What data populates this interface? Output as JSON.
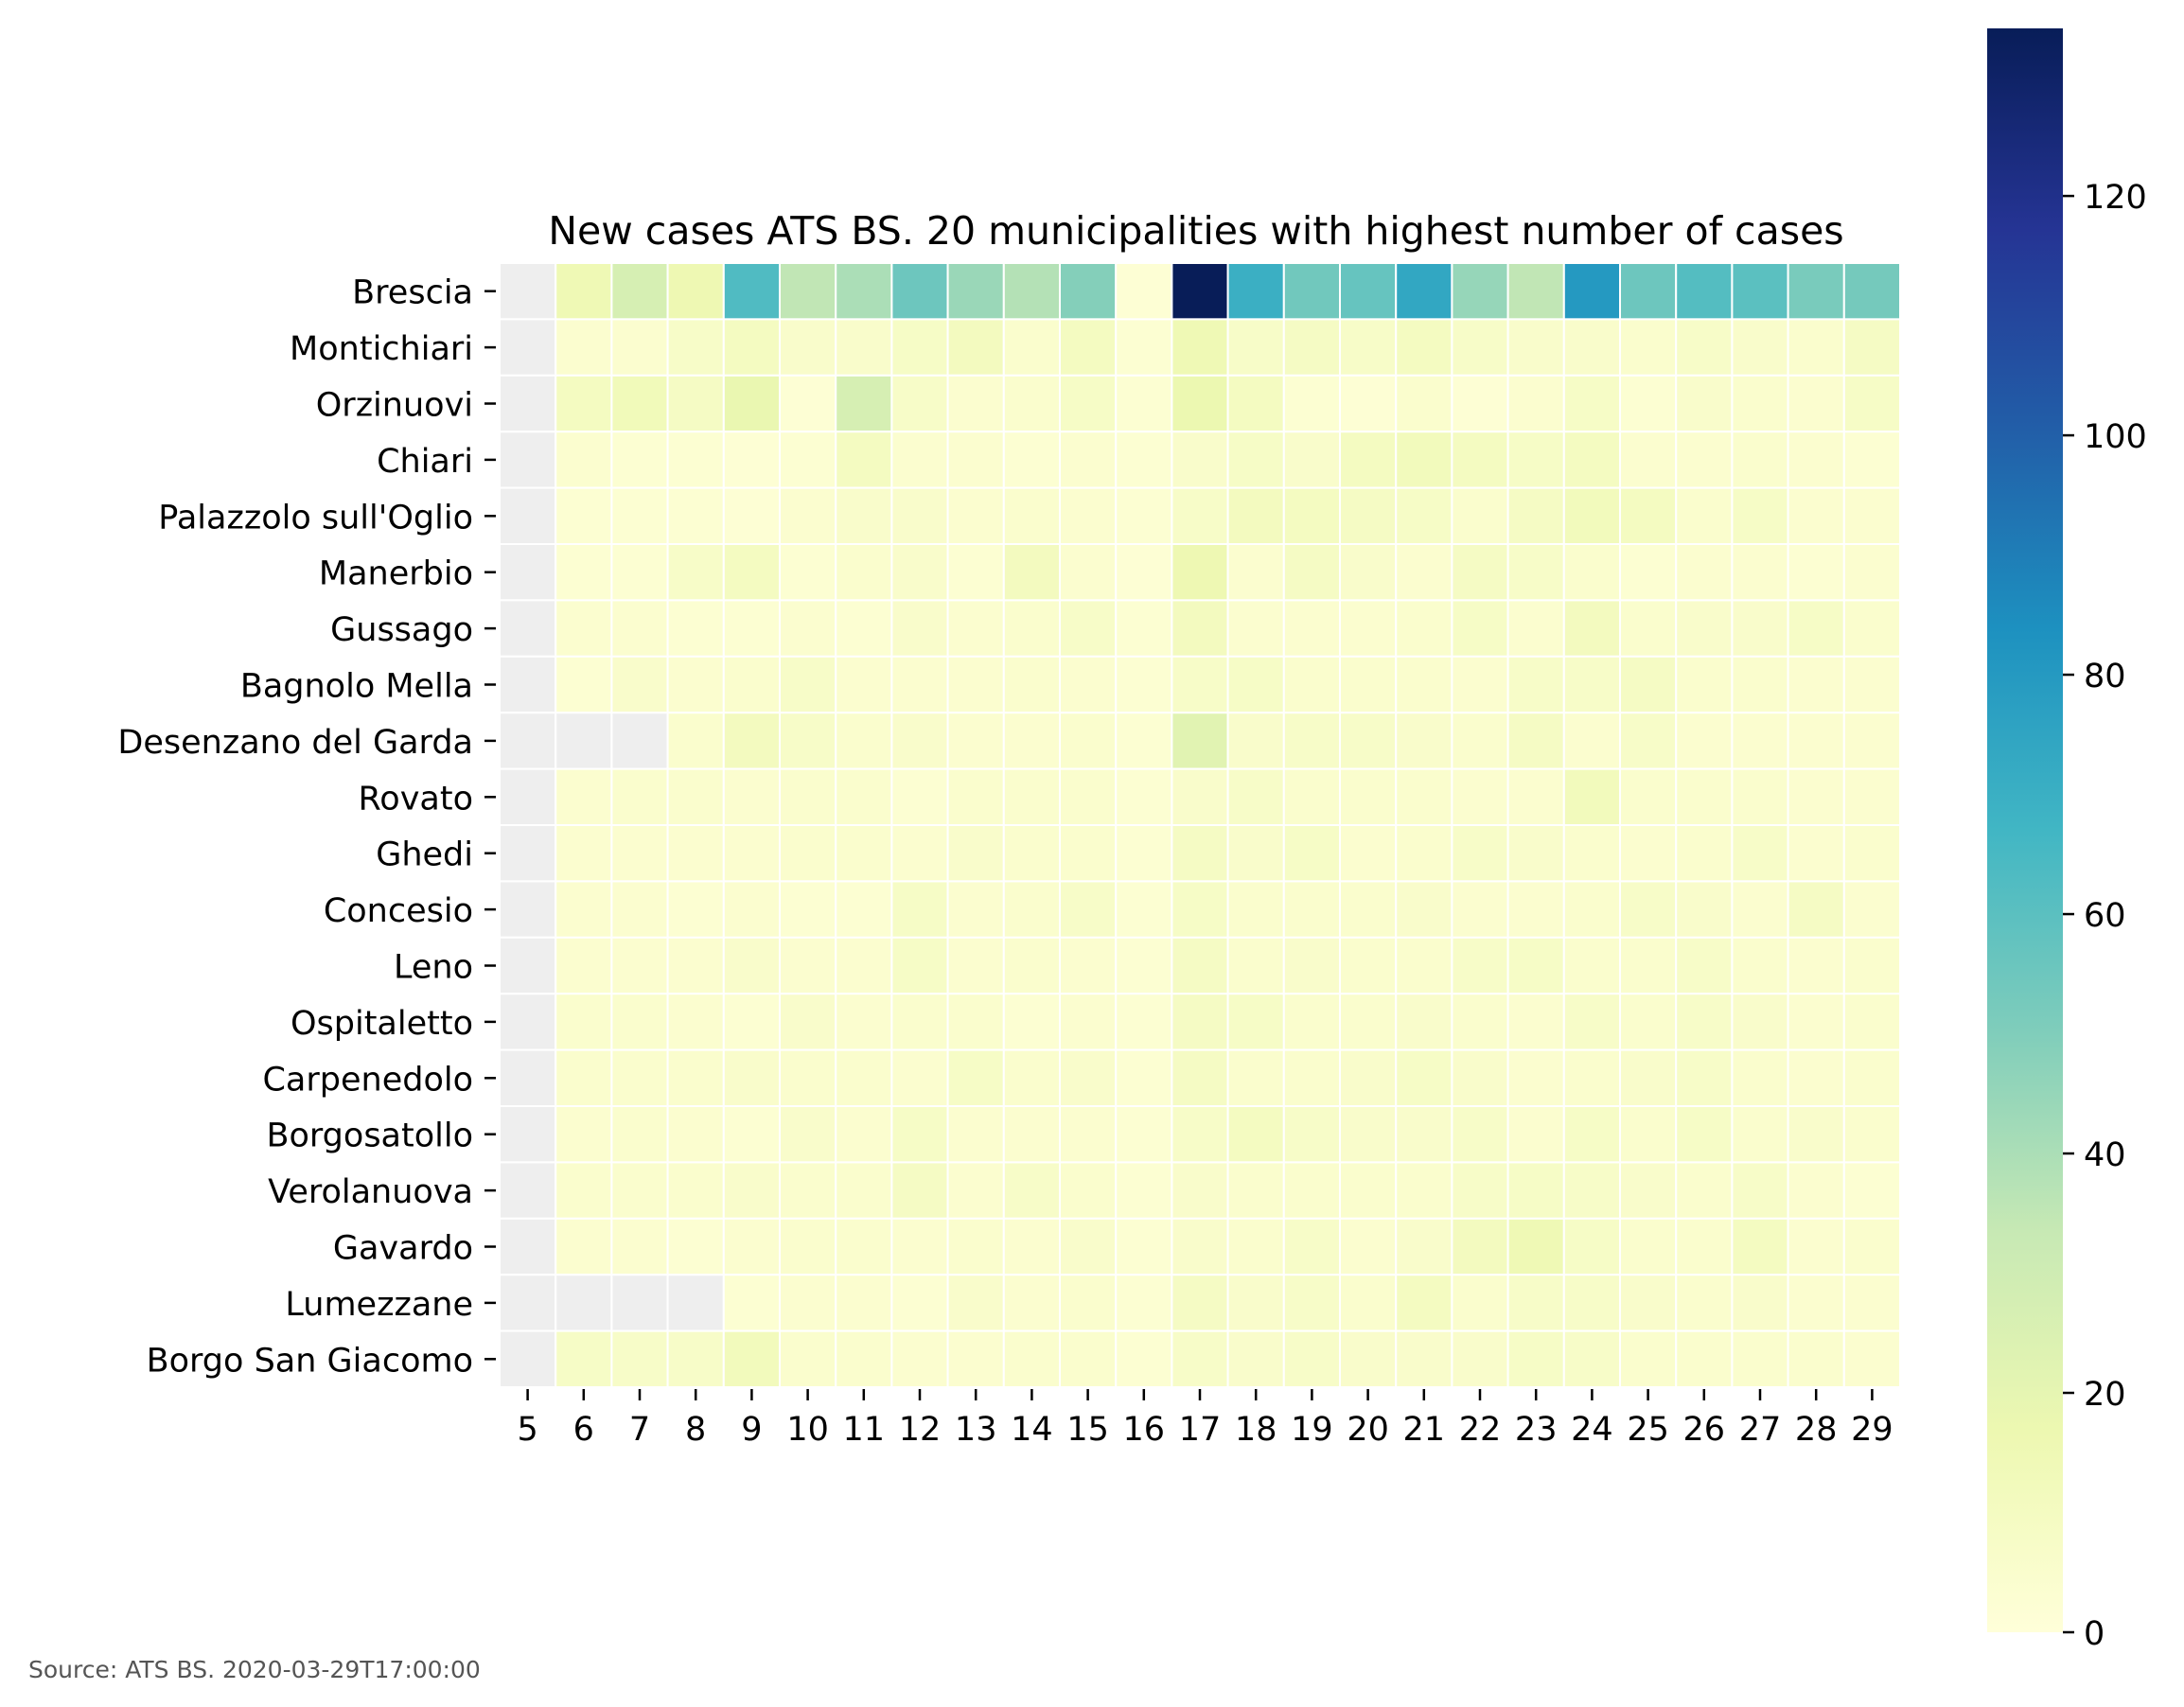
{
  "source_note": "Source: ATS BS. 2020-03-29T17:00:00",
  "chart_data": {
    "type": "heatmap",
    "title": "New cases ATS BS. 20 municipalities with highest number of cases",
    "xlabel": "",
    "ylabel": "",
    "x": [
      "5",
      "6",
      "7",
      "8",
      "9",
      "10",
      "11",
      "12",
      "13",
      "14",
      "15",
      "16",
      "17",
      "18",
      "19",
      "20",
      "21",
      "22",
      "23",
      "24",
      "25",
      "26",
      "27",
      "28",
      "29"
    ],
    "y": [
      "Brescia",
      "Montichiari",
      "Orzinuovi",
      "Chiari",
      "Palazzolo sull'Oglio",
      "Manerbio",
      "Gussago",
      "Bagnolo Mella",
      "Desenzano del Garda",
      "Rovato",
      "Ghedi",
      "Concesio",
      "Leno",
      "Ospitaletto",
      "Carpenedolo",
      "Borgosatollo",
      "Verolanuova",
      "Gavardo",
      "Lumezzane",
      "Borgo San Giacomo"
    ],
    "values": [
      [
        null,
        15,
        27,
        16,
        63,
        35,
        40,
        55,
        44,
        38,
        49,
        2,
        134,
        70,
        54,
        57,
        74,
        45,
        35,
        80,
        55,
        62,
        60,
        52,
        53
      ],
      [
        null,
        4,
        4,
        7,
        10,
        6,
        6,
        8,
        11,
        5,
        10,
        3,
        15,
        7,
        9,
        7,
        10,
        7,
        6,
        6,
        5,
        7,
        6,
        5,
        9
      ],
      [
        null,
        10,
        13,
        9,
        18,
        2,
        27,
        7,
        4,
        5,
        8,
        3,
        17,
        10,
        3,
        2,
        5,
        2,
        4,
        8,
        3,
        6,
        5,
        4,
        8
      ],
      [
        null,
        4,
        3,
        3,
        2,
        3,
        10,
        4,
        4,
        3,
        4,
        3,
        6,
        8,
        6,
        10,
        12,
        10,
        8,
        10,
        4,
        4,
        5,
        4,
        3
      ],
      [
        null,
        3,
        3,
        3,
        2,
        4,
        6,
        6,
        4,
        5,
        4,
        3,
        7,
        11,
        10,
        9,
        8,
        5,
        9,
        12,
        10,
        5,
        8,
        4,
        4
      ],
      [
        null,
        3,
        3,
        7,
        10,
        3,
        5,
        6,
        3,
        11,
        4,
        2,
        16,
        4,
        9,
        6,
        4,
        9,
        7,
        5,
        3,
        4,
        4,
        3,
        4
      ],
      [
        null,
        4,
        4,
        3,
        3,
        4,
        3,
        6,
        4,
        5,
        7,
        3,
        11,
        4,
        4,
        4,
        5,
        8,
        4,
        11,
        5,
        6,
        6,
        8,
        5
      ],
      [
        null,
        3,
        6,
        4,
        5,
        7,
        4,
        4,
        4,
        5,
        4,
        3,
        7,
        8,
        5,
        5,
        5,
        4,
        7,
        7,
        9,
        5,
        5,
        4,
        4
      ],
      [
        null,
        null,
        null,
        5,
        11,
        7,
        5,
        6,
        4,
        4,
        5,
        3,
        22,
        6,
        7,
        7,
        6,
        5,
        9,
        4,
        7,
        4,
        4,
        4,
        4
      ],
      [
        null,
        4,
        5,
        5,
        4,
        5,
        5,
        3,
        5,
        5,
        5,
        3,
        6,
        7,
        5,
        5,
        5,
        4,
        4,
        12,
        5,
        5,
        5,
        4,
        4
      ],
      [
        null,
        4,
        4,
        4,
        4,
        5,
        5,
        4,
        6,
        5,
        5,
        3,
        9,
        6,
        8,
        4,
        5,
        7,
        6,
        5,
        4,
        5,
        7,
        4,
        5
      ],
      [
        null,
        4,
        4,
        3,
        4,
        3,
        3,
        8,
        4,
        5,
        7,
        3,
        8,
        5,
        5,
        5,
        6,
        4,
        4,
        5,
        7,
        6,
        4,
        9,
        4
      ],
      [
        null,
        4,
        4,
        4,
        6,
        4,
        4,
        8,
        4,
        5,
        4,
        3,
        9,
        5,
        6,
        5,
        5,
        7,
        8,
        5,
        5,
        7,
        5,
        4,
        5
      ],
      [
        null,
        5,
        5,
        4,
        3,
        6,
        4,
        5,
        5,
        3,
        4,
        3,
        9,
        8,
        5,
        5,
        6,
        5,
        4,
        7,
        5,
        7,
        6,
        4,
        5
      ],
      [
        null,
        5,
        5,
        5,
        6,
        5,
        5,
        4,
        8,
        5,
        6,
        3,
        9,
        5,
        5,
        6,
        8,
        6,
        4,
        5,
        6,
        7,
        5,
        4,
        5
      ],
      [
        null,
        4,
        5,
        4,
        3,
        6,
        4,
        8,
        4,
        4,
        4,
        3,
        7,
        10,
        7,
        6,
        6,
        7,
        4,
        8,
        5,
        8,
        5,
        6,
        5
      ],
      [
        null,
        5,
        5,
        5,
        6,
        5,
        5,
        9,
        4,
        7,
        5,
        3,
        6,
        5,
        5,
        5,
        5,
        7,
        8,
        7,
        6,
        5,
        7,
        4,
        3
      ],
      [
        null,
        4,
        4,
        3,
        4,
        5,
        5,
        4,
        5,
        4,
        6,
        3,
        6,
        5,
        7,
        4,
        6,
        11,
        15,
        8,
        5,
        5,
        10,
        4,
        5
      ],
      [
        null,
        null,
        null,
        null,
        3,
        4,
        4,
        3,
        6,
        4,
        5,
        3,
        9,
        6,
        7,
        5,
        10,
        5,
        7,
        7,
        6,
        5,
        6,
        4,
        4
      ],
      [
        null,
        8,
        7,
        7,
        12,
        5,
        5,
        4,
        4,
        5,
        5,
        3,
        7,
        6,
        7,
        6,
        6,
        6,
        8,
        7,
        5,
        5,
        5,
        5,
        4
      ]
    ],
    "missing_color": "#eeeeee",
    "colormap": "YlGnBu",
    "vmin": 0,
    "vmax": 134,
    "colorbar_ticks": [
      0,
      20,
      40,
      60,
      80,
      100,
      120
    ]
  }
}
